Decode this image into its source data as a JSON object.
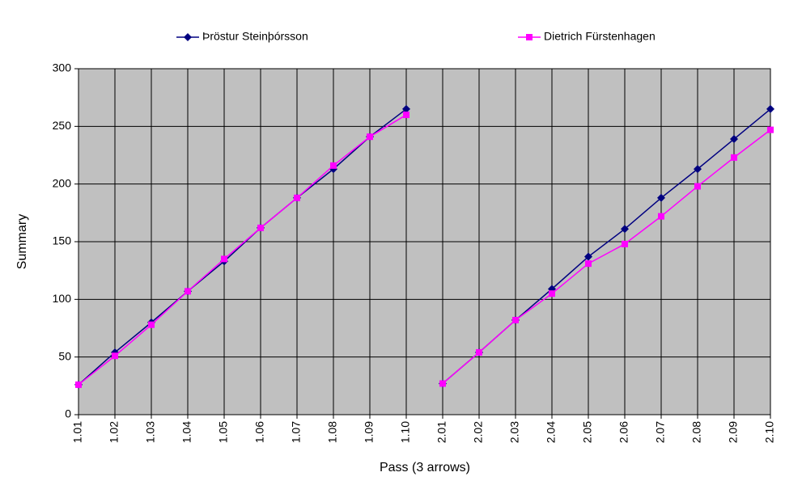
{
  "chart_data": {
    "type": "line",
    "x_label": "Pass (3 arrows)",
    "y_label": "Summary",
    "categories": [
      "1.01",
      "1.02",
      "1.03",
      "1.04",
      "1.05",
      "1.06",
      "1.07",
      "1.08",
      "1.09",
      "1.10",
      "2.01",
      "2.02",
      "2.03",
      "2.04",
      "2.05",
      "2.06",
      "2.07",
      "2.08",
      "2.09",
      "2.10"
    ],
    "series": [
      {
        "name": "Þröstur Steinþórsson",
        "color": "#000080",
        "marker": "diamond",
        "values": [
          26,
          54,
          80,
          107,
          133,
          162,
          188,
          213,
          241,
          265,
          27,
          54,
          82,
          109,
          137,
          161,
          188,
          213,
          239,
          265
        ]
      },
      {
        "name": "Dietrich Fürstenhagen",
        "color": "#ff00ff",
        "marker": "square",
        "values": [
          26,
          51,
          78,
          107,
          135,
          162,
          188,
          216,
          241,
          260,
          27,
          54,
          82,
          105,
          131,
          148,
          172,
          198,
          223,
          247
        ]
      }
    ],
    "ylim": [
      0,
      300
    ],
    "yticks": [
      0,
      50,
      100,
      150,
      200,
      250,
      300
    ],
    "grid": true,
    "plot_background": "#c0c0c0",
    "legend": "top"
  }
}
